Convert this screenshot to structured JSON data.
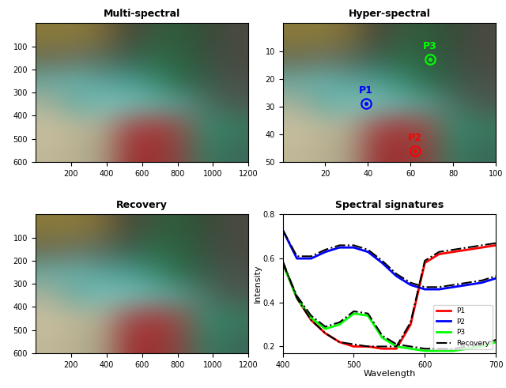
{
  "chart_data": [
    {
      "type": "image",
      "title": "Multi-spectral",
      "xlim": [
        0,
        1200
      ],
      "ylim": [
        600,
        0
      ],
      "xticks": [
        200,
        400,
        600,
        800,
        1000,
        1200
      ],
      "yticks": [
        100,
        200,
        300,
        400,
        500,
        600
      ],
      "image": [
        [
          "#8a7a3a",
          "#8a7a3a",
          "#7a6a3a",
          "#4a4a38",
          "#3a5a40",
          "#2e5a3a",
          "#3a4a3a",
          "#4a4a40"
        ],
        [
          "#6a6a50",
          "#6a7060",
          "#5a6a5a",
          "#3e6050",
          "#2e6a48",
          "#2e6040",
          "#3a5040",
          "#4a4a42"
        ],
        [
          "#6aa8a0",
          "#6ab0a8",
          "#5aa098",
          "#4a9a90",
          "#3a8a70",
          "#2e6a4a",
          "#3a5a48",
          "#4a5048"
        ],
        [
          "#a8b098",
          "#6aaaa0",
          "#7ac0b8",
          "#7ac0b8",
          "#6ab0a8",
          "#5a9a90",
          "#4a7060",
          "#4a5a50"
        ],
        [
          "#c8c0a0",
          "#c0b898",
          "#b0aa90",
          "#a05050",
          "#a83a3a",
          "#8a5a50",
          "#3a8a70",
          "#3a7a60"
        ],
        [
          "#c0b898",
          "#b8b090",
          "#a8a088",
          "#983838",
          "#a03030",
          "#7a5048",
          "#3a7a60",
          "#3a6a58"
        ]
      ]
    },
    {
      "type": "image",
      "title": "Hyper-spectral",
      "xlim": [
        0,
        100
      ],
      "ylim": [
        50,
        0
      ],
      "xticks": [
        20,
        40,
        60,
        80,
        100
      ],
      "yticks": [
        10,
        20,
        30,
        40,
        50
      ],
      "image": [
        [
          "#8a7a3a",
          "#8a7a3a",
          "#7a6a3a",
          "#4a4a38",
          "#3a5a40",
          "#2e5a3a",
          "#3a4a3a",
          "#4a4a40"
        ],
        [
          "#6a6a50",
          "#6a7060",
          "#5a6a5a",
          "#3e6050",
          "#2e6a48",
          "#2e6040",
          "#3a5040",
          "#4a4a42"
        ],
        [
          "#6aa8a0",
          "#6ab0a8",
          "#5aa098",
          "#4a9a90",
          "#3a8a70",
          "#2e6a4a",
          "#3a5a48",
          "#4a5048"
        ],
        [
          "#a8b098",
          "#6aaaa0",
          "#7ac0b8",
          "#7ac0b8",
          "#6ab0a8",
          "#5a9a90",
          "#4a7060",
          "#4a5a50"
        ],
        [
          "#c8c0a0",
          "#c0b898",
          "#b0aa90",
          "#a05050",
          "#a83a3a",
          "#8a5a50",
          "#3a8a70",
          "#3a7a60"
        ],
        [
          "#c0b898",
          "#b8b090",
          "#a8a088",
          "#983838",
          "#a03030",
          "#7a5048",
          "#3a7a60",
          "#3a6a58"
        ]
      ],
      "points": [
        {
          "label": "P1",
          "x": 39,
          "y": 29,
          "color": "#0000ff"
        },
        {
          "label": "P2",
          "x": 62,
          "y": 46,
          "color": "#ff0000"
        },
        {
          "label": "P3",
          "x": 69,
          "y": 13,
          "color": "#00ff00"
        }
      ]
    },
    {
      "type": "image",
      "title": "Recovery",
      "xlim": [
        0,
        1200
      ],
      "ylim": [
        600,
        0
      ],
      "xticks": [
        200,
        400,
        600,
        800,
        1000,
        1200
      ],
      "yticks": [
        100,
        200,
        300,
        400,
        500,
        600
      ],
      "image": [
        [
          "#8a7a3a",
          "#8a7a3a",
          "#7a6a3a",
          "#4a4a38",
          "#3a5a40",
          "#2e5a3a",
          "#3a4a3a",
          "#4a4a40"
        ],
        [
          "#6a6a50",
          "#6a7060",
          "#5a6a5a",
          "#3e6050",
          "#2e6a48",
          "#2e6040",
          "#3a5040",
          "#4a4a42"
        ],
        [
          "#6aa8a0",
          "#6ab0a8",
          "#5aa098",
          "#4a9a90",
          "#3a8a70",
          "#2e6a4a",
          "#3a5a48",
          "#4a5048"
        ],
        [
          "#a8b098",
          "#6aaaa0",
          "#7ac0b8",
          "#7ac0b8",
          "#6ab0a8",
          "#5a9a90",
          "#4a7060",
          "#4a5a50"
        ],
        [
          "#c8c0a0",
          "#c0b898",
          "#b0aa90",
          "#a05050",
          "#a83a3a",
          "#8a5a50",
          "#3a8a70",
          "#3a7a60"
        ],
        [
          "#c0b898",
          "#b8b090",
          "#a8a088",
          "#983838",
          "#a03030",
          "#7a5048",
          "#3a7a60",
          "#3a6a58"
        ]
      ]
    },
    {
      "type": "line",
      "title": "Spectral signatures",
      "x_label": "Wavelength",
      "y_label": "Intensity",
      "xlim": [
        400,
        700
      ],
      "ylim": [
        0.17,
        0.8
      ],
      "xticks": [
        400,
        500,
        600,
        700
      ],
      "yticks": [
        0.2,
        0.4,
        0.6,
        0.8
      ],
      "legend": "lower right",
      "x": [
        400,
        420,
        440,
        460,
        480,
        500,
        520,
        540,
        560,
        580,
        600,
        620,
        640,
        660,
        680,
        700
      ],
      "series": [
        {
          "name": "P1",
          "color": "#ff0000",
          "line_style": "solid",
          "values": [
            [
              0.58,
              0.42,
              0.32,
              0.26,
              0.22,
              0.2,
              0.2,
              0.19,
              0.19,
              0.3,
              0.58,
              0.62,
              0.63,
              0.64,
              0.65,
              0.66
            ]
          ]
        },
        {
          "name": "P2",
          "color": "#0000ff",
          "line_style": "solid",
          "values": [
            [
              0.73,
              0.6,
              0.6,
              0.63,
              0.65,
              0.65,
              0.63,
              0.58,
              0.52,
              0.48,
              0.46,
              0.46,
              0.47,
              0.48,
              0.49,
              0.51
            ]
          ]
        },
        {
          "name": "P3",
          "color": "#00ff00",
          "line_style": "solid",
          "values": [
            [
              0.58,
              0.42,
              0.33,
              0.28,
              0.3,
              0.35,
              0.34,
              0.24,
              0.2,
              0.19,
              0.18,
              0.18,
              0.18,
              0.19,
              0.2,
              0.22
            ]
          ]
        },
        {
          "name": "Recovery",
          "color": "#000000",
          "line_style": "dashdot",
          "values": [
            [
              0.59,
              0.42,
              0.32,
              0.26,
              0.22,
              0.21,
              0.2,
              0.2,
              0.2,
              0.31,
              0.59,
              0.63,
              0.64,
              0.65,
              0.66,
              0.67
            ],
            [
              0.73,
              0.61,
              0.61,
              0.64,
              0.66,
              0.66,
              0.64,
              0.59,
              0.53,
              0.49,
              0.47,
              0.47,
              0.48,
              0.49,
              0.5,
              0.52
            ],
            [
              0.58,
              0.43,
              0.34,
              0.29,
              0.31,
              0.36,
              0.35,
              0.25,
              0.21,
              0.2,
              0.19,
              0.19,
              0.19,
              0.2,
              0.21,
              0.23
            ]
          ]
        }
      ]
    }
  ]
}
